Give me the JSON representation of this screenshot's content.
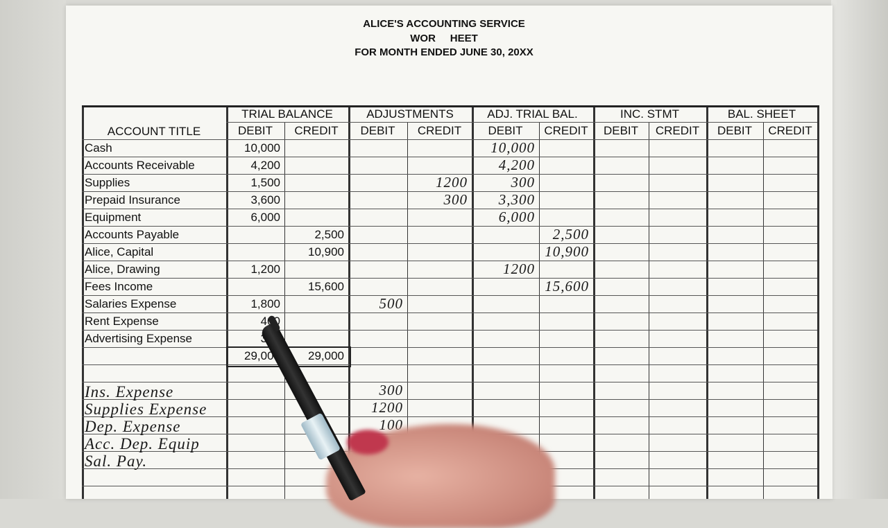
{
  "header": {
    "line1": "ALICE'S ACCOUNTING SERVICE",
    "line2": "WOR     HEET",
    "line3": "FOR MONTH ENDED JUNE 30, 20XX"
  },
  "columns": {
    "account_title": "ACCOUNT TITLE",
    "groups": [
      "TRIAL BALANCE",
      "ADJUSTMENTS",
      "ADJ. TRIAL BAL.",
      "INC. STMT",
      "BAL. SHEET"
    ],
    "debit": "DEBIT",
    "credit": "CREDIT"
  },
  "rows": [
    {
      "account": "Cash",
      "tb_debit": "10,000",
      "atb_debit": "10,000"
    },
    {
      "account": "Accounts Receivable",
      "tb_debit": "4,200",
      "atb_debit": "4,200"
    },
    {
      "account": "Supplies",
      "tb_debit": "1,500",
      "adj_credit": "1200",
      "atb_debit": "300"
    },
    {
      "account": "Prepaid Insurance",
      "tb_debit": "3,600",
      "adj_credit": "300",
      "atb_debit": "3,300"
    },
    {
      "account": "Equipment",
      "tb_debit": "6,000",
      "atb_debit": "6,000"
    },
    {
      "account": "Accounts Payable",
      "tb_credit": "2,500",
      "atb_credit": "2,500"
    },
    {
      "account": "Alice, Capital",
      "tb_credit": "10,900",
      "atb_credit": "10,900"
    },
    {
      "account": "Alice, Drawing",
      "tb_debit": "1,200",
      "atb_debit": "1200"
    },
    {
      "account": "Fees Income",
      "tb_credit": "15,600",
      "atb_credit": "15,600"
    },
    {
      "account": "Salaries Expense",
      "tb_debit": "1,800",
      "adj_debit": "500"
    },
    {
      "account": "Rent Expense",
      "tb_debit": "400"
    },
    {
      "account": "Advertising Expense",
      "tb_debit": "300"
    },
    {
      "account": "",
      "tb_debit": "29,000",
      "tb_credit": "29,000",
      "total": true
    },
    {
      "account": ""
    },
    {
      "account": "Ins. Expense",
      "handwritten": true,
      "adj_debit": "300"
    },
    {
      "account": "Supplies Expense",
      "handwritten": true,
      "adj_debit": "1200"
    },
    {
      "account": "Dep. Expense",
      "handwritten": true,
      "adj_debit": "100"
    },
    {
      "account": "Acc. Dep. Equip",
      "handwritten": true
    },
    {
      "account": "Sal. Pay.",
      "handwritten": true
    },
    {
      "account": ""
    },
    {
      "account": ""
    }
  ],
  "handwritten_columns": [
    "adj_debit",
    "adj_credit",
    "atb_debit",
    "atb_credit"
  ]
}
